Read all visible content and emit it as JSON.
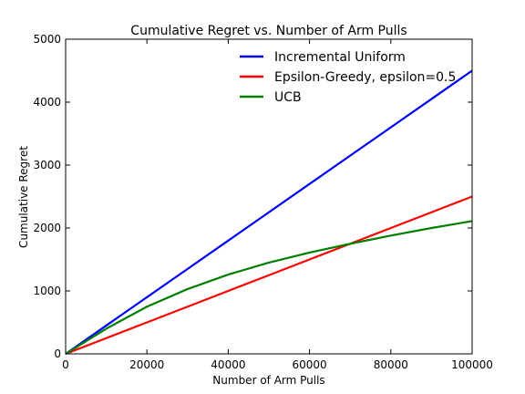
{
  "chart_data": {
    "type": "line",
    "title": "Cumulative Regret vs. Number of Arm Pulls",
    "xlabel": "Number of Arm Pulls",
    "ylabel": "Cumulative Regret",
    "xlim": [
      0,
      100000
    ],
    "ylim": [
      0,
      5000
    ],
    "xticks": [
      0,
      20000,
      40000,
      60000,
      80000,
      100000
    ],
    "yticks": [
      0,
      1000,
      2000,
      3000,
      4000,
      5000
    ],
    "xtick_labels": [
      "0",
      "20000",
      "40000",
      "60000",
      "80000",
      "100000"
    ],
    "ytick_labels": [
      "0",
      "1000",
      "2000",
      "3000",
      "4000",
      "5000"
    ],
    "grid": false,
    "legend_position": "top-right",
    "x": [
      0,
      10000,
      20000,
      30000,
      40000,
      50000,
      60000,
      70000,
      80000,
      90000,
      100000
    ],
    "series": [
      {
        "name": "Incremental Uniform",
        "color": "#0000ff",
        "values": [
          0,
          450,
          900,
          1350,
          1800,
          2250,
          2700,
          3150,
          3600,
          4050,
          4500
        ]
      },
      {
        "name": "Epsilon-Greedy, epsilon=0.5",
        "color": "#ff0000",
        "values": [
          0,
          250,
          500,
          750,
          1000,
          1250,
          1500,
          1750,
          2000,
          2250,
          2500
        ]
      },
      {
        "name": "UCB",
        "color": "#008000",
        "values": [
          0,
          400,
          750,
          1030,
          1260,
          1450,
          1610,
          1750,
          1880,
          2000,
          2110
        ]
      }
    ]
  }
}
